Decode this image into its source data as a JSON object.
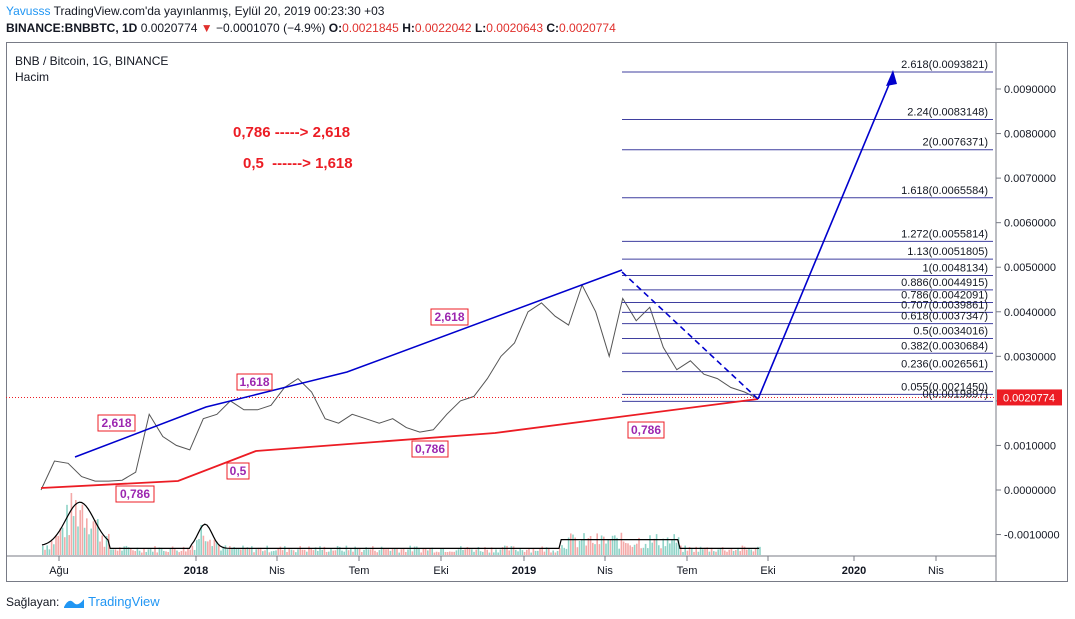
{
  "header": {
    "author": "Yavusss",
    "published_text": "TradingView.com'da yayınlanmış, Eylül 20, 2019 00:23:30 +03",
    "symbol": "BINANCE:BNBBTC, 1D",
    "last": "0.0020774",
    "change": "−0.0001070 (−4.9%)",
    "o_label": "O:",
    "o_value": "0.0021845",
    "h_label": "H:",
    "h_value": "0.0022042",
    "l_label": "L:",
    "l_value": "0.0020643",
    "c_label": "C:",
    "c_value": "0.0020774"
  },
  "legend": {
    "pair": "BNB / Bitcoin, 1G, BINANCE",
    "volume": "Hacim"
  },
  "annotations": {
    "line1": "0,786 -----> 2,618",
    "line2": "0,5  ------> 1,618",
    "colors": {
      "red": "#ec1c24",
      "blue": "#0000cd",
      "purple": "#9c27b0",
      "fib": "#3f3f9f",
      "dark": "#131722"
    }
  },
  "footer": {
    "prefix": "Sağlayan:",
    "brand": "TradingView"
  },
  "chart_data": {
    "type": "line",
    "y_range": [
      -0.0015,
      0.0105
    ],
    "y_ticks": [
      "0.0090000",
      "0.0080000",
      "0.0070000",
      "0.0060000",
      "0.0050000",
      "0.0040000",
      "0.0030000",
      "0.0020000",
      "0.0010000",
      "0.0000000",
      "-0.0010000"
    ],
    "x_ticks": [
      "Ağu",
      "2018",
      "Nis",
      "Tem",
      "Eki",
      "2019",
      "Nis",
      "Tem",
      "Eki",
      "2020",
      "Nis"
    ],
    "last_price_label": "0.0020774",
    "fib_levels": [
      {
        "label": "2.618(0.0093821)",
        "value": 0.0093821
      },
      {
        "label": "2.24(0.0083148)",
        "value": 0.0083148
      },
      {
        "label": "2(0.0076371)",
        "value": 0.0076371
      },
      {
        "label": "1.618(0.0065584)",
        "value": 0.0065584
      },
      {
        "label": "1.272(0.0055814)",
        "value": 0.0055814
      },
      {
        "label": "1.13(0.0051805)",
        "value": 0.0051805
      },
      {
        "label": "1(0.0048134)",
        "value": 0.0048134
      },
      {
        "label": "0.886(0.0044915)",
        "value": 0.0044915
      },
      {
        "label": "0.786(0.0042091)",
        "value": 0.0042091
      },
      {
        "label": "0.707(0.0039861)",
        "value": 0.0039861
      },
      {
        "label": "0.618(0.0037347)",
        "value": 0.0037347
      },
      {
        "label": "0.5(0.0034016)",
        "value": 0.0034016
      },
      {
        "label": "0.382(0.0030684)",
        "value": 0.0030684
      },
      {
        "label": "0.236(0.0026561)",
        "value": 0.0026561
      },
      {
        "label": "0.055(0.0021450)",
        "value": 0.002145
      },
      {
        "label": "0(0.0019897)",
        "value": 0.0019897
      }
    ],
    "wave_labels": [
      {
        "text": "2,618",
        "color": "purple"
      },
      {
        "text": "0,786",
        "color": "purple"
      },
      {
        "text": "0,5",
        "color": "purple"
      },
      {
        "text": "1,618",
        "color": "purple"
      },
      {
        "text": "2,618",
        "color": "purple"
      },
      {
        "text": "0,786",
        "color": "purple"
      },
      {
        "text": "0,786",
        "color": "purple"
      }
    ],
    "price": [
      0.0,
      0.00065,
      0.0006,
      0.0003,
      0.0002,
      0.0002,
      0.00022,
      0.0004,
      0.0017,
      0.0012,
      0.001,
      0.0009,
      0.0016,
      0.0017,
      0.002,
      0.0018,
      0.0018,
      0.0019,
      0.0023,
      0.0025,
      0.0022,
      0.0016,
      0.0015,
      0.0017,
      0.0016,
      0.0015,
      0.0016,
      0.0014,
      0.0013,
      0.00135,
      0.0017,
      0.002,
      0.0021,
      0.0025,
      0.003,
      0.0033,
      0.004,
      0.0042,
      0.0039,
      0.0037,
      0.0046,
      0.004,
      0.003,
      0.0043,
      0.0038,
      0.0041,
      0.0032,
      0.0027,
      0.0029,
      0.0026,
      0.0025,
      0.0023,
      0.0022,
      0.00205
    ]
  }
}
